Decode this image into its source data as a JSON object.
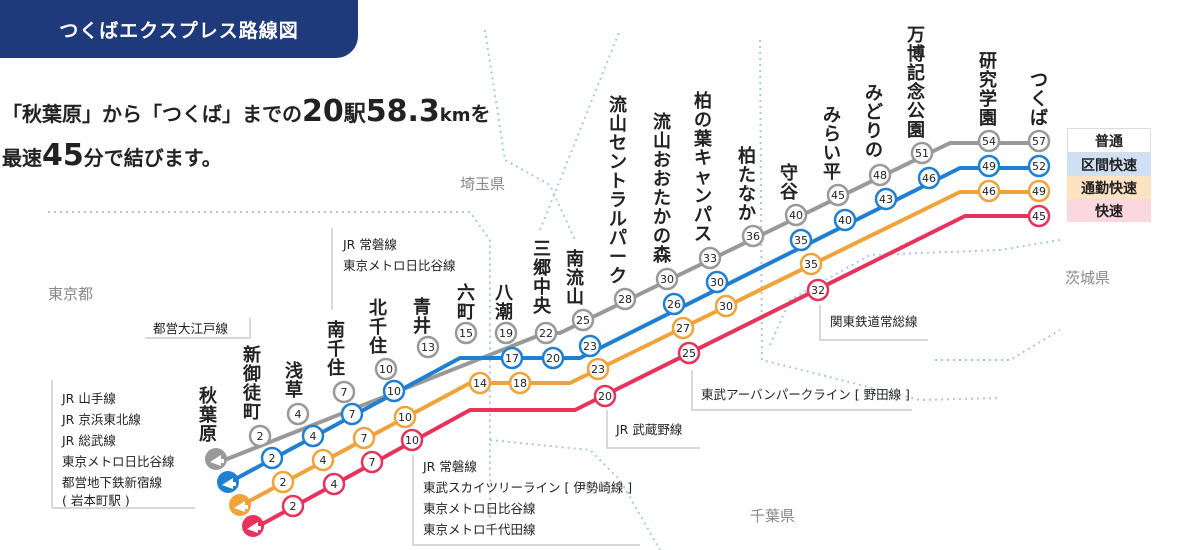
{
  "title": "つくばエクスプレス路線図",
  "intro": {
    "line1_a": "「秋葉原」から「つくば」までの",
    "station_count": "20",
    "station_unit": "駅",
    "distance": "58.3",
    "distance_unit": "km",
    "line1_b": "を",
    "line2_a": "最速",
    "minutes": "45",
    "line2_b": "分で結びます。"
  },
  "legend": [
    {
      "label": "普通",
      "color": "#ffffff"
    },
    {
      "label": "区間快速",
      "color": "#cfe0f2"
    },
    {
      "label": "通勤快速",
      "color": "#fde3c2"
    },
    {
      "label": "快速",
      "color": "#fbd7df"
    }
  ],
  "colors": {
    "local": "#999999",
    "section_rapid": "#1f7fd0",
    "commuter_rapid": "#f0a33a",
    "rapid": "#e5335c",
    "header": "#1e3a7b",
    "border": "#a8c9e8"
  },
  "prefectures": [
    "埼玉県",
    "東京都",
    "茨城県",
    "千葉県"
  ],
  "stations": [
    "秋葉原",
    "新御徒町",
    "浅草",
    "南千住",
    "北千住",
    "青井",
    "六町",
    "八潮",
    "三郷中央",
    "南流山",
    "流山セントラルパーク",
    "流山おおたかの森",
    "柏の葉キャンパス",
    "柏たなか",
    "守谷",
    "みらい平",
    "みどりの",
    "万博記念公園",
    "研究学園",
    "つくば"
  ],
  "times": {
    "local": [
      "2",
      "4",
      "7",
      "10",
      "13",
      "15",
      "19",
      "22",
      "25",
      "28",
      "30",
      "33",
      "36",
      "40",
      "45",
      "48",
      "51",
      "54",
      "57"
    ],
    "section_rapid": [
      "2",
      "4",
      "7",
      "10",
      "17",
      "20",
      "23",
      "26",
      "30",
      "35",
      "40",
      "43",
      "46",
      "49",
      "52"
    ],
    "commuter_rapid": [
      "2",
      "4",
      "7",
      "10",
      "14",
      "18",
      "23",
      "27",
      "30",
      "35",
      "46",
      "49"
    ],
    "rapid": [
      "2",
      "4",
      "7",
      "10",
      "20",
      "25",
      "32",
      "45"
    ]
  },
  "transfers": {
    "akihabara": [
      "JR 山手線",
      "JR 京浜東北線",
      "JR 総武線",
      "東京メトロ日比谷線",
      "都営地下鉄新宿線",
      "( 岩本町駅 )"
    ],
    "shin_okachimachi": [
      "都営大江戸線"
    ],
    "minami_senju": [
      "JR 常磐線",
      "東京メトロ日比谷線"
    ],
    "kita_senju": [
      "JR 常磐線",
      "東武スカイツリーライン [ 伊勢崎線 ]",
      "東京メトロ日比谷線",
      "東京メトロ千代田線"
    ],
    "minami_nagareyama": [
      "JR 武蔵野線"
    ],
    "nagareyama_otakanomori": [
      "東武アーバンパークライン [ 野田線 ]"
    ],
    "moriya": [
      "関東鉄道常総線"
    ]
  }
}
